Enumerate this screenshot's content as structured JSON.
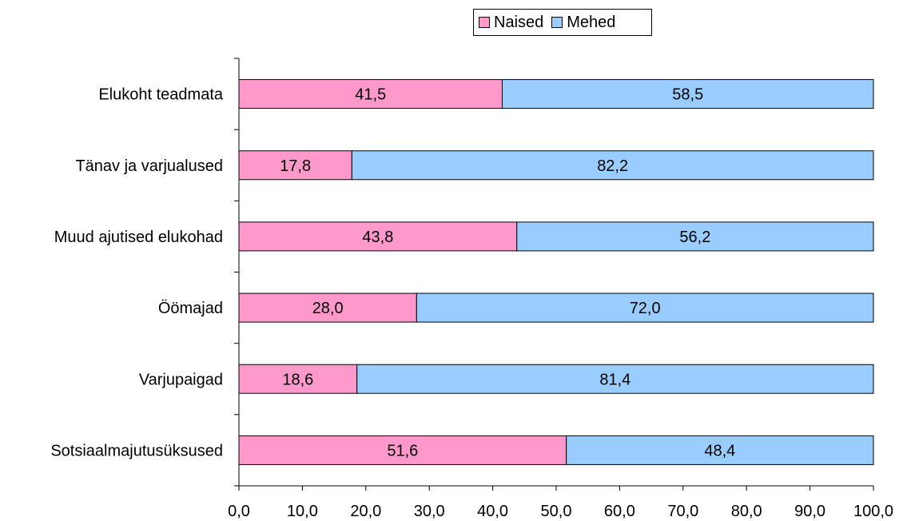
{
  "chart_data": {
    "type": "bar",
    "orientation": "horizontal",
    "stacked": true,
    "categories": [
      "Elukoht teadmata",
      "Tänav ja varjualused",
      "Muud ajutised elukohad",
      "Öömajad",
      "Varjupaigad",
      "Sotsiaalmajutusüksused"
    ],
    "series": [
      {
        "name": "Naised",
        "color": "#ff99cc",
        "values": [
          41.5,
          17.8,
          43.8,
          28.0,
          18.6,
          51.6
        ],
        "labels": [
          "41,5",
          "17,8",
          "43,8",
          "28,0",
          "18,6",
          "51,6"
        ]
      },
      {
        "name": "Mehed",
        "color": "#99ccff",
        "values": [
          58.5,
          82.2,
          56.2,
          72.0,
          81.4,
          48.4
        ],
        "labels": [
          "58,5",
          "82,2",
          "56,2",
          "72,0",
          "81,4",
          "48,4"
        ]
      }
    ],
    "xlim": [
      0,
      100
    ],
    "xticks": [
      0,
      10,
      20,
      30,
      40,
      50,
      60,
      70,
      80,
      90,
      100
    ],
    "xtick_labels": [
      "0,0",
      "10,0",
      "20,0",
      "30,0",
      "40,0",
      "50,0",
      "60,0",
      "70,0",
      "80,0",
      "90,0",
      "100,0"
    ],
    "grid": false,
    "legend_position": "top"
  }
}
